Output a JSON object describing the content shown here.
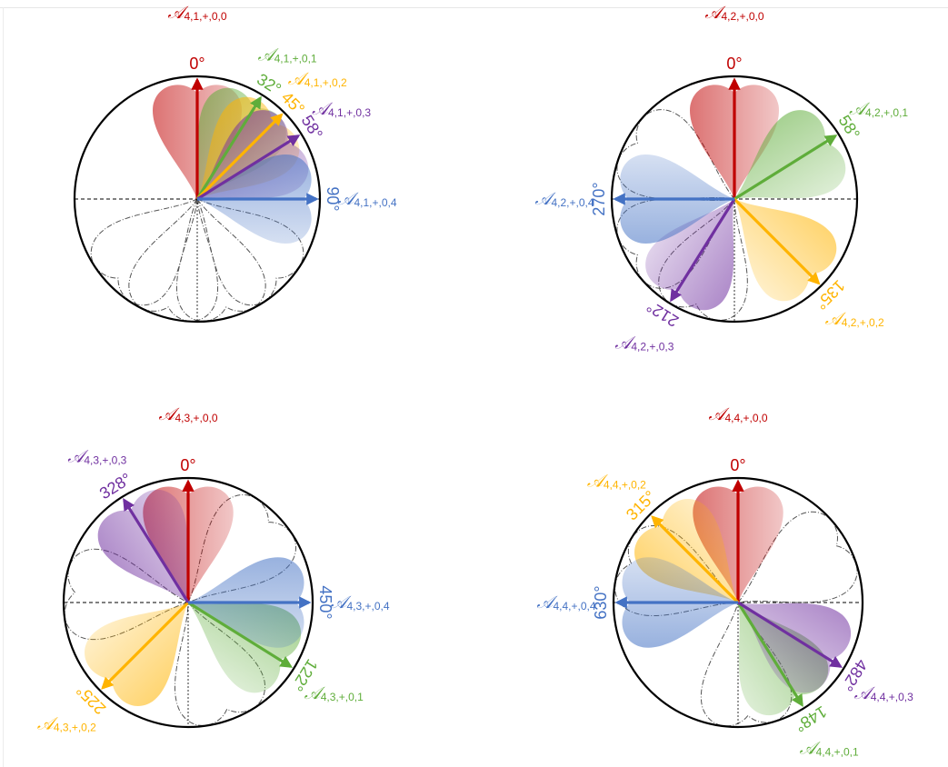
{
  "colors": {
    "mode0": "#c00000",
    "mode1": "#5fad3a",
    "mode2": "#ffb400",
    "mode3": "#7030a0",
    "mode4": "#4472c4",
    "circle": "#000000",
    "axis": "#000000",
    "ghost": "#555555"
  },
  "panels": [
    {
      "arrows": [
        {
          "mode": 0,
          "angle": 0,
          "degree_label": "0°",
          "name_sym": "𝒜",
          "name_sub": "4,1,+,0,0"
        },
        {
          "mode": 1,
          "angle": 32,
          "degree_label": "32°",
          "name_sym": "𝒜",
          "name_sub": "4,1,+,0,1"
        },
        {
          "mode": 2,
          "angle": 45,
          "degree_label": "45°",
          "name_sym": "𝒜",
          "name_sub": "4,1,+,0,2"
        },
        {
          "mode": 3,
          "angle": 58,
          "degree_label": "58°",
          "name_sym": "𝒜",
          "name_sub": "4,1,+,0,3"
        },
        {
          "mode": 4,
          "angle": 90,
          "degree_label": "90°",
          "name_sym": "𝒜",
          "name_sub": "4,1,+,0,4"
        }
      ],
      "ghost_angles": [
        135,
        165,
        195,
        225
      ]
    },
    {
      "arrows": [
        {
          "mode": 0,
          "angle": 0,
          "degree_label": "0°",
          "name_sym": "𝒜",
          "name_sub": "4,2,+,0,0"
        },
        {
          "mode": 1,
          "angle": 58,
          "degree_label": "58°",
          "name_sym": "𝒜",
          "name_sub": "4,2,+,0,1"
        },
        {
          "mode": 2,
          "angle": 135,
          "degree_label": "135°",
          "name_sym": "𝒜",
          "name_sub": "4,2,+,0,2"
        },
        {
          "mode": 3,
          "angle": 212,
          "degree_label": "212°",
          "name_sym": "𝒜",
          "name_sub": "4,2,+,0,3"
        },
        {
          "mode": 4,
          "angle": 270,
          "degree_label": "270°",
          "name_sym": "𝒜",
          "name_sub": "4,2,+,0,4"
        }
      ],
      "ghost_angles": [
        300,
        240,
        200
      ]
    },
    {
      "arrows": [
        {
          "mode": 0,
          "angle": 0,
          "degree_label": "0°",
          "name_sym": "𝒜",
          "name_sub": "4,3,+,0,0"
        },
        {
          "mode": 1,
          "angle": 122,
          "degree_label": "122°",
          "name_sym": "𝒜",
          "name_sub": "4,3,+,0,1"
        },
        {
          "mode": 2,
          "angle": 225,
          "degree_label": "225°",
          "name_sym": "𝒜",
          "name_sub": "4,3,+,0,2"
        },
        {
          "mode": 3,
          "angle": 328,
          "degree_label": "328°",
          "name_sym": "𝒜",
          "name_sub": "4,3,+,0,3"
        },
        {
          "mode": 4,
          "angle": 450,
          "degree_label": "450°",
          "name_sym": "𝒜",
          "name_sub": "4,3,+,0,4"
        }
      ],
      "ghost_angles": [
        275,
        45,
        160
      ]
    },
    {
      "arrows": [
        {
          "mode": 0,
          "angle": 0,
          "degree_label": "0°",
          "name_sym": "𝒜",
          "name_sub": "4,4,+,0,0"
        },
        {
          "mode": 1,
          "angle": 148,
          "degree_label": "148°",
          "name_sym": "𝒜",
          "name_sub": "4,4,+,0,1"
        },
        {
          "mode": 2,
          "angle": 315,
          "degree_label": "315°",
          "name_sym": "𝒜",
          "name_sub": "4,4,+,0,2"
        },
        {
          "mode": 3,
          "angle": 482,
          "degree_label": "482°",
          "name_sym": "𝒜",
          "name_sub": "4,4,+,0,3"
        },
        {
          "mode": 4,
          "angle": 630,
          "degree_label": "630°",
          "name_sym": "𝒜",
          "name_sub": "4,4,+,0,4"
        }
      ],
      "ghost_angles": [
        290,
        60,
        175
      ]
    }
  ]
}
